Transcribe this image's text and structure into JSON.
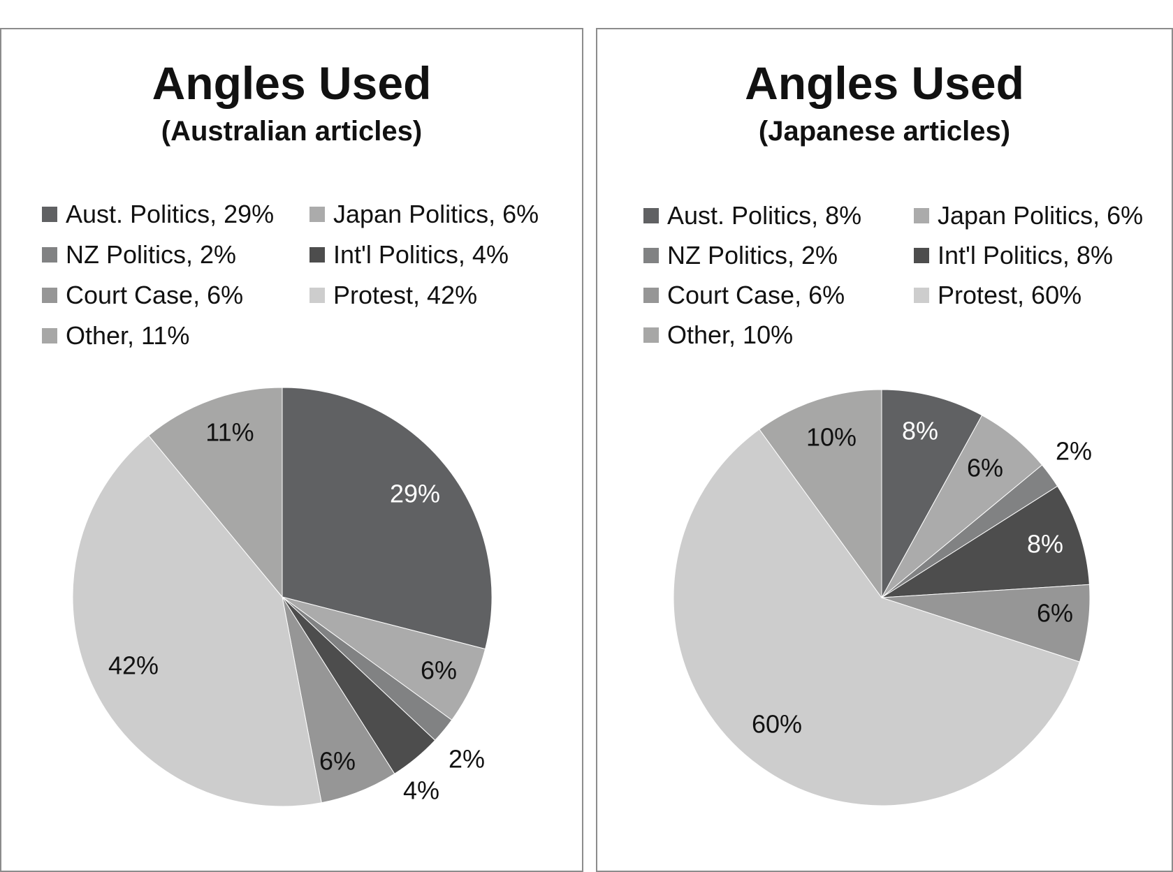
{
  "chart_data": [
    {
      "type": "pie",
      "title": "Angles Used",
      "subtitle": "(Australian articles)",
      "categories": [
        "Aust. Politics",
        "Japan Politics",
        "NZ Politics",
        "Int'l Politics",
        "Court Case",
        "Protest",
        "Other"
      ],
      "values": [
        29,
        6,
        2,
        4,
        6,
        42,
        11
      ],
      "unit": "%",
      "legend_labels": [
        "Aust. Politics, 29%",
        "Japan Politics, 6%",
        "NZ Politics, 2%",
        "Int'l Politics, 4%",
        "Court Case, 6%",
        "Protest, 42%",
        "Other, 11%"
      ],
      "data_labels": [
        "29%",
        "6%",
        "2%",
        "4%",
        "6%",
        "42%",
        "11%"
      ],
      "colors": [
        "#606163",
        "#ababab",
        "#818283",
        "#4d4d4d",
        "#969696",
        "#cdcdcd",
        "#a7a7a6"
      ],
      "legend_placement": "top"
    },
    {
      "type": "pie",
      "title": "Angles Used",
      "subtitle": "(Japanese articles)",
      "categories": [
        "Aust. Politics",
        "Japan Politics",
        "NZ Politics",
        "Int'l Politics",
        "Court Case",
        "Protest",
        "Other"
      ],
      "values": [
        8,
        6,
        2,
        8,
        6,
        60,
        10
      ],
      "unit": "%",
      "legend_labels": [
        "Aust. Politics, 8%",
        "Japan Politics, 6%",
        "NZ Politics, 2%",
        "Int'l Politics, 8%",
        "Court Case, 6%",
        "Protest, 60%",
        "Other, 10%"
      ],
      "data_labels": [
        "8%",
        "6%",
        "2%",
        "8%",
        "6%",
        "60%",
        "10%"
      ],
      "colors": [
        "#606163",
        "#ababab",
        "#818283",
        "#4d4d4d",
        "#969696",
        "#cdcdcd",
        "#a7a7a6"
      ],
      "legend_placement": "top"
    }
  ]
}
